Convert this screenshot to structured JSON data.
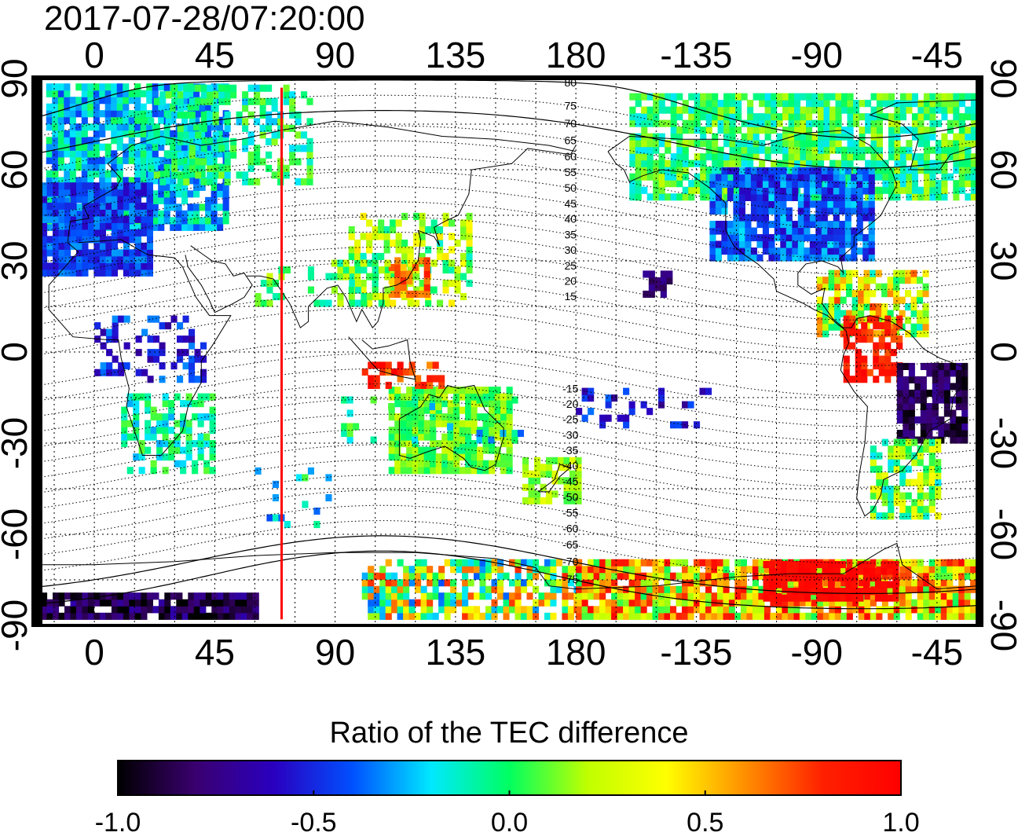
{
  "timestamp": "2017-07-28/07:20:00",
  "top_lon_labels": [
    "0",
    "45",
    "90",
    "135",
    "180",
    "-135",
    "-90",
    "-45"
  ],
  "bottom_lon_labels": [
    "0",
    "45",
    "90",
    "135",
    "180",
    "-135",
    "-90",
    "-45"
  ],
  "left_lat_labels": [
    "90",
    "60",
    "30",
    "0",
    "-30",
    "-60",
    "-90"
  ],
  "right_lat_labels": [
    "90",
    "60",
    "30",
    "0",
    "-30",
    "-60",
    "-90"
  ],
  "contour_labels": [
    "80",
    "75",
    "70",
    "65",
    "60",
    "55",
    "50",
    "45",
    "40",
    "35",
    "30",
    "25",
    "20",
    "15",
    "-15",
    "-20",
    "-25",
    "-30",
    "-35",
    "-40",
    "-45",
    "-50",
    "-55",
    "-60",
    "-65",
    "-70",
    "-75"
  ],
  "colorbar": {
    "title": "Ratio of the TEC difference",
    "ticks": [
      "-1.0",
      "-0.5",
      "0.0",
      "0.5",
      "1.0"
    ],
    "min": -1.0,
    "max": 1.0,
    "colors": [
      "#000000",
      "#3a0070",
      "#2a00c0",
      "#0050ff",
      "#00e8ff",
      "#00ff60",
      "#c0ff00",
      "#ffff00",
      "#ff9000",
      "#ff2000",
      "#ff0000"
    ]
  },
  "map": {
    "lon_range": [
      -20,
      330
    ],
    "lat_range": [
      -90,
      90
    ],
    "marker_longitude": 70,
    "marker_color": "#ff0000"
  }
}
